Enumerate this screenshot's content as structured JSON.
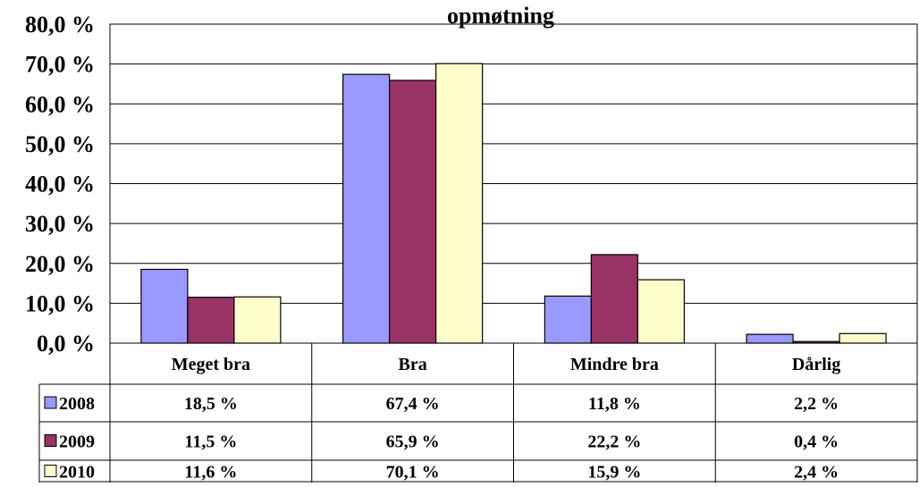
{
  "chart_data": {
    "type": "bar",
    "title": "opmøtning",
    "categories": [
      "Meget bra",
      "Bra",
      "Mindre bra",
      "Dårlig"
    ],
    "series": [
      {
        "name": "2008",
        "color": "#9999FF",
        "values": [
          18.5,
          67.4,
          11.8,
          2.2
        ],
        "labels": [
          "18,5 %",
          "67,4 %",
          "11,8 %",
          "2,2 %"
        ]
      },
      {
        "name": "2009",
        "color": "#993366",
        "values": [
          11.5,
          65.9,
          22.2,
          0.4
        ],
        "labels": [
          "11,5 %",
          "65,9 %",
          "22,2 %",
          "0,4 %"
        ]
      },
      {
        "name": "2010",
        "color": "#FFFFCC",
        "values": [
          11.6,
          70.1,
          15.9,
          2.4
        ],
        "labels": [
          "11,6 %",
          "70,1 %",
          "15,9 %",
          "2,4 %"
        ]
      }
    ],
    "yticks": [
      "0,0 %",
      "10,0 %",
      "20,0 %",
      "30,0 %",
      "40,0 %",
      "50,0 %",
      "60,0 %",
      "70,0 %",
      "80,0 %"
    ],
    "ylim": [
      0,
      80
    ],
    "grid": true,
    "legend": "data-table-left"
  }
}
